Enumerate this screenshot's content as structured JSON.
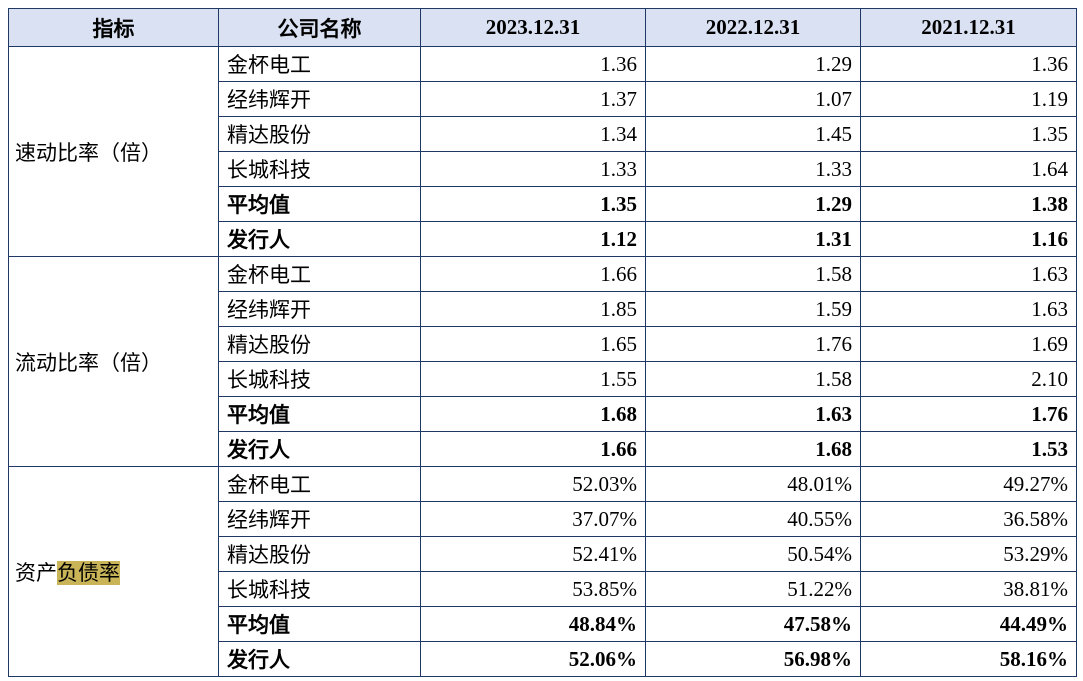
{
  "table": {
    "header": [
      "指标",
      "公司名称",
      "2023.12.31",
      "2022.12.31",
      "2021.12.31"
    ],
    "groups": [
      {
        "indicator": [
          "速动比率（倍）"
        ],
        "rows": [
          {
            "cells": [
              "金杯电工",
              "1.36",
              "1.29",
              "1.36"
            ]
          },
          {
            "cells": [
              "经纬辉开",
              "1.37",
              "1.07",
              "1.19"
            ]
          },
          {
            "cells": [
              "精达股份",
              "1.34",
              "1.45",
              "1.35"
            ]
          },
          {
            "cells": [
              "长城科技",
              "1.33",
              "1.33",
              "1.64"
            ]
          },
          {
            "cells": [
              "平均值",
              "1.35",
              "1.29",
              "1.38"
            ],
            "bold": true
          },
          {
            "cells": [
              "发行人",
              "1.12",
              "1.31",
              "1.16"
            ],
            "bold": true
          }
        ]
      },
      {
        "indicator": [
          "流动比率（倍）"
        ],
        "rows": [
          {
            "cells": [
              "金杯电工",
              "1.66",
              "1.58",
              "1.63"
            ]
          },
          {
            "cells": [
              "经纬辉开",
              "1.85",
              "1.59",
              "1.63"
            ]
          },
          {
            "cells": [
              "精达股份",
              "1.65",
              "1.76",
              "1.69"
            ]
          },
          {
            "cells": [
              "长城科技",
              "1.55",
              "1.58",
              "2.10"
            ]
          },
          {
            "cells": [
              "平均值",
              "1.68",
              "1.63",
              "1.76"
            ],
            "bold": true
          },
          {
            "cells": [
              "发行人",
              "1.66",
              "1.68",
              "1.53"
            ],
            "bold": true
          }
        ]
      },
      {
        "indicator": [
          "资产",
          "负债率"
        ],
        "highlight_segment": 1,
        "rows": [
          {
            "cells": [
              "金杯电工",
              "52.03%",
              "48.01%",
              "49.27%"
            ]
          },
          {
            "cells": [
              "经纬辉开",
              "37.07%",
              "40.55%",
              "36.58%"
            ]
          },
          {
            "cells": [
              "精达股份",
              "52.41%",
              "50.54%",
              "53.29%"
            ]
          },
          {
            "cells": [
              "长城科技",
              "53.85%",
              "51.22%",
              "38.81%"
            ]
          },
          {
            "cells": [
              "平均值",
              "48.84%",
              "47.58%",
              "44.49%"
            ],
            "bold": true
          },
          {
            "cells": [
              "发行人",
              "52.06%",
              "56.98%",
              "58.16%"
            ],
            "bold": true
          }
        ]
      }
    ]
  }
}
